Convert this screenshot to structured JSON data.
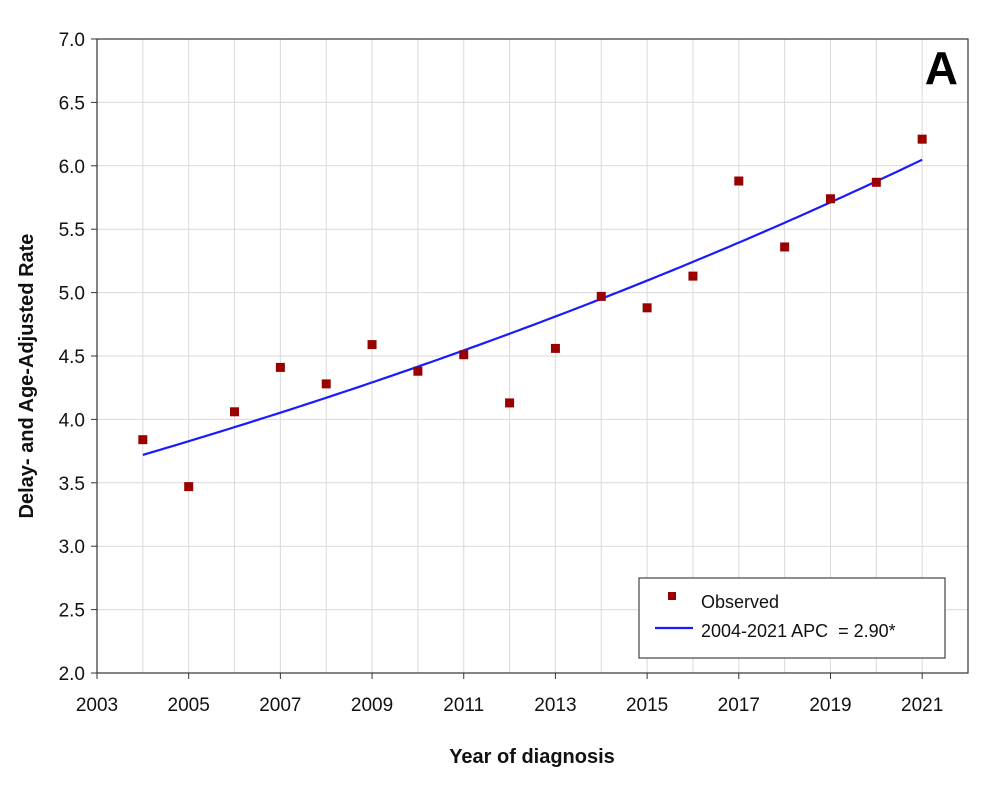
{
  "chart_data": {
    "type": "scatter",
    "panel_label": "A",
    "xlabel": "Year of diagnosis",
    "ylabel": "Delay- and Age-Adjusted Rate",
    "xlim": [
      2003,
      2022
    ],
    "ylim": [
      2.0,
      7.0
    ],
    "x_ticks": [
      "2003",
      "2005",
      "2007",
      "2009",
      "2011",
      "2013",
      "2015",
      "2017",
      "2019",
      "2021"
    ],
    "y_ticks": [
      "2.0",
      "2.5",
      "3.0",
      "3.5",
      "4.0",
      "4.5",
      "5.0",
      "5.5",
      "6.0",
      "6.5",
      "7.0"
    ],
    "grid": true,
    "legend_position": "bottom-right",
    "series": [
      {
        "name": "Observed",
        "kind": "points",
        "color": "#990000",
        "x": [
          2004,
          2005,
          2006,
          2007,
          2008,
          2009,
          2010,
          2011,
          2012,
          2013,
          2014,
          2015,
          2016,
          2017,
          2018,
          2019,
          2020,
          2021
        ],
        "y": [
          3.84,
          3.47,
          4.06,
          4.41,
          4.28,
          4.59,
          4.38,
          4.51,
          4.13,
          4.56,
          4.97,
          4.88,
          5.13,
          5.88,
          5.36,
          5.74,
          5.87,
          6.21
        ]
      },
      {
        "name": "2004-2021 APC  = 2.90*",
        "kind": "fit",
        "color": "#1a1aff",
        "x_range": [
          2004,
          2021
        ],
        "start_value": 3.72,
        "apc_percent": 2.9
      }
    ]
  }
}
